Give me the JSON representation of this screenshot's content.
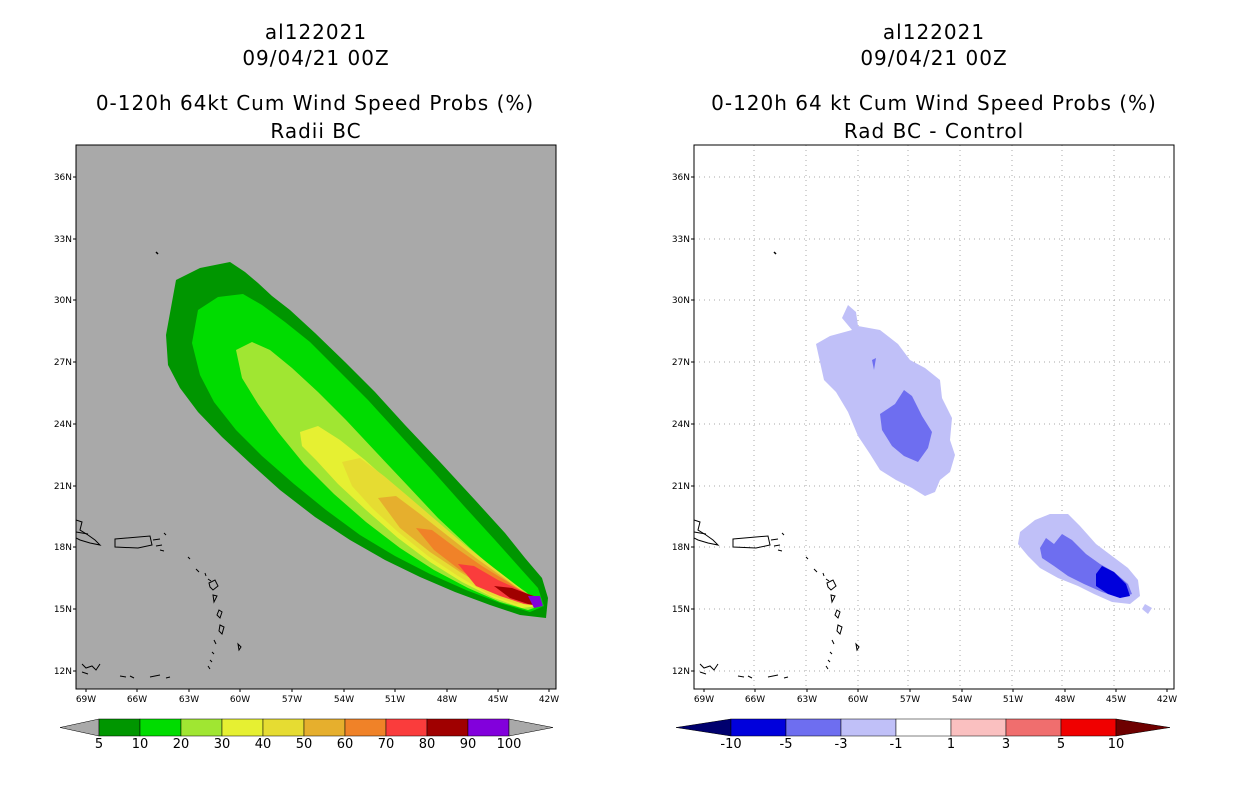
{
  "left_panel": {
    "title_line1": "al122021",
    "title_line2": "09/04/21 00Z",
    "title_line3": "0-120h 64kt Cum Wind Speed Probs (%)",
    "title_line4": "Radii BC",
    "colorbar_labels": [
      "5",
      "10",
      "20",
      "30",
      "40",
      "50",
      "60",
      "70",
      "80",
      "90",
      "100"
    ],
    "colorbar_colors": [
      "#009600",
      "#00dc00",
      "#a0e632",
      "#e6f032",
      "#e6dc32",
      "#e6af2d",
      "#f08228",
      "#fa3c3c",
      "#a00000",
      "#8200dc"
    ]
  },
  "right_panel": {
    "title_line1": "al122021",
    "title_line2": "09/04/21 00Z",
    "title_line3": "0-120h 64 kt Cum Wind Speed Probs (%)",
    "title_line4": "Rad BC - Control",
    "colorbar_labels": [
      "-10",
      "-5",
      "-3",
      "-1",
      "1",
      "3",
      "5",
      "10"
    ],
    "colorbar_colors": [
      "#0000dc",
      "#6e6ef0",
      "#c0c0f8",
      "#ffffff",
      "#fac0c0",
      "#f06e6e",
      "#f00000"
    ],
    "colorbar_end_left": "#00006e",
    "colorbar_end_right": "#6e0000"
  },
  "axes": {
    "lat_labels": [
      "36N",
      "33N",
      "30N",
      "27N",
      "24N",
      "21N",
      "18N",
      "15N",
      "12N"
    ],
    "lon_labels": [
      "69W",
      "66W",
      "63W",
      "60W",
      "57W",
      "54W",
      "51W",
      "48W",
      "45W",
      "42W"
    ]
  }
}
